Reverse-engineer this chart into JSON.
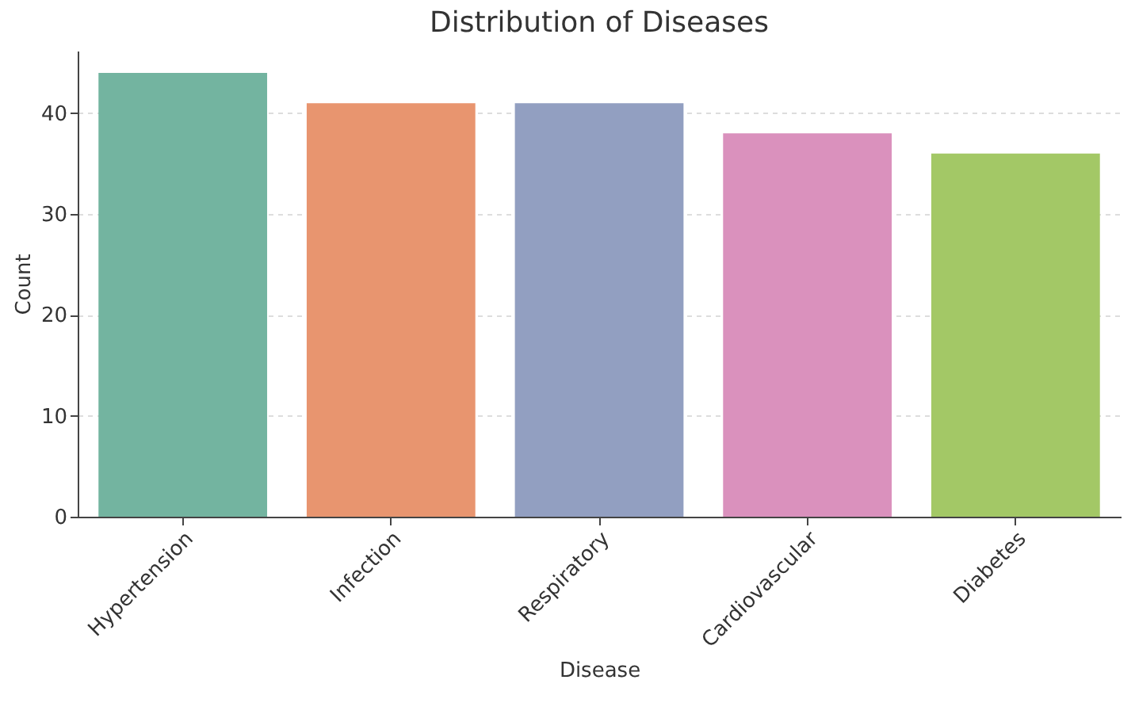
{
  "chart_data": {
    "type": "bar",
    "title": "Distribution of Diseases",
    "xlabel": "Disease",
    "ylabel": "Count",
    "categories": [
      "Hypertension",
      "Infection",
      "Respiratory",
      "Cardiovascular",
      "Diabetes"
    ],
    "values": [
      44,
      41,
      41,
      38,
      36
    ],
    "colors": [
      "#73b4a0",
      "#e8956f",
      "#929fc1",
      "#da91bd",
      "#a3c866"
    ],
    "ylim": [
      0,
      46.2
    ],
    "yticks": [
      0,
      10,
      20,
      30,
      40
    ],
    "grid": "y"
  }
}
